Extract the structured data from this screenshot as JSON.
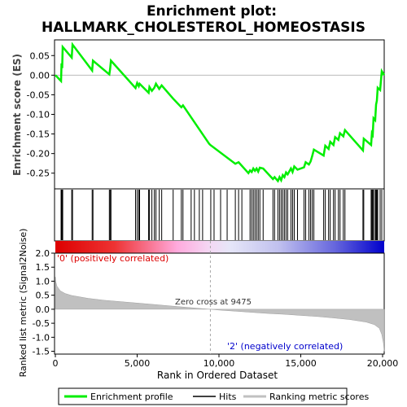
{
  "chart_data": {
    "type": "line",
    "title_line1": "Enrichment plot:",
    "title_line2": "HALLMARK_CHOLESTEROL_HOMEOSTASIS",
    "es_panel": {
      "ylabel": "Enrichment score (ES)",
      "ylim": [
        -0.29,
        0.09
      ],
      "yticks": [
        0.05,
        0.0,
        -0.05,
        -0.1,
        -0.15,
        -0.2,
        -0.25
      ],
      "ytick_labels": [
        "0.05",
        "0.00",
        "-0.05",
        "-0.10",
        "-0.15",
        "-0.20",
        "-0.25"
      ],
      "line_color": "#00ee00",
      "points": [
        [
          0,
          0.0
        ],
        [
          350,
          -0.015
        ],
        [
          380,
          0.03
        ],
        [
          420,
          0.018
        ],
        [
          450,
          0.072
        ],
        [
          1000,
          0.045
        ],
        [
          1050,
          0.078
        ],
        [
          2250,
          0.012
        ],
        [
          2300,
          0.037
        ],
        [
          3300,
          0.002
        ],
        [
          3350,
          0.016
        ],
        [
          3400,
          0.037
        ],
        [
          4900,
          -0.033
        ],
        [
          5000,
          -0.02
        ],
        [
          5100,
          -0.028
        ],
        [
          5150,
          -0.022
        ],
        [
          5700,
          -0.045
        ],
        [
          5750,
          -0.03
        ],
        [
          5900,
          -0.04
        ],
        [
          6050,
          -0.032
        ],
        [
          6150,
          -0.022
        ],
        [
          6350,
          -0.035
        ],
        [
          6500,
          -0.026
        ],
        [
          7200,
          -0.06
        ],
        [
          7700,
          -0.082
        ],
        [
          7800,
          -0.077
        ],
        [
          9400,
          -0.175
        ],
        [
          9475,
          -0.178
        ],
        [
          11000,
          -0.226
        ],
        [
          11200,
          -0.222
        ],
        [
          11800,
          -0.25
        ],
        [
          11900,
          -0.243
        ],
        [
          12000,
          -0.247
        ],
        [
          12100,
          -0.238
        ],
        [
          12200,
          -0.244
        ],
        [
          12300,
          -0.238
        ],
        [
          12400,
          -0.246
        ],
        [
          12500,
          -0.236
        ],
        [
          12700,
          -0.238
        ],
        [
          13300,
          -0.265
        ],
        [
          13400,
          -0.26
        ],
        [
          13600,
          -0.27
        ],
        [
          13700,
          -0.26
        ],
        [
          13800,
          -0.268
        ],
        [
          13900,
          -0.255
        ],
        [
          14000,
          -0.26
        ],
        [
          14100,
          -0.248
        ],
        [
          14200,
          -0.253
        ],
        [
          14400,
          -0.238
        ],
        [
          14500,
          -0.247
        ],
        [
          14600,
          -0.233
        ],
        [
          14800,
          -0.241
        ],
        [
          15200,
          -0.235
        ],
        [
          15300,
          -0.222
        ],
        [
          15500,
          -0.228
        ],
        [
          15600,
          -0.22
        ],
        [
          15700,
          -0.206
        ],
        [
          15800,
          -0.19
        ],
        [
          16400,
          -0.205
        ],
        [
          16500,
          -0.18
        ],
        [
          16700,
          -0.188
        ],
        [
          16800,
          -0.17
        ],
        [
          17000,
          -0.178
        ],
        [
          17100,
          -0.158
        ],
        [
          17300,
          -0.165
        ],
        [
          17400,
          -0.148
        ],
        [
          17600,
          -0.156
        ],
        [
          17700,
          -0.14
        ],
        [
          18800,
          -0.192
        ],
        [
          18850,
          -0.162
        ],
        [
          19300,
          -0.178
        ],
        [
          19350,
          -0.148
        ],
        [
          19400,
          -0.152
        ],
        [
          19450,
          -0.11
        ],
        [
          19550,
          -0.115
        ],
        [
          19600,
          -0.075
        ],
        [
          19650,
          -0.065
        ],
        [
          19700,
          -0.032
        ],
        [
          19850,
          -0.038
        ],
        [
          19950,
          0.01
        ],
        [
          20100,
          0.0
        ]
      ]
    },
    "hits_panel": {
      "hit_positions": [
        350,
        380,
        420,
        450,
        1000,
        1050,
        2250,
        2300,
        3300,
        3350,
        3400,
        4900,
        5000,
        5100,
        5150,
        5700,
        5750,
        5900,
        6050,
        6150,
        6350,
        6500,
        7200,
        7700,
        7800,
        8300,
        8500,
        8800,
        9000,
        9500,
        9700,
        10100,
        10500,
        11000,
        11200,
        11400,
        11900,
        12000,
        12100,
        12200,
        12300,
        12400,
        12500,
        12700,
        13300,
        13400,
        13600,
        13700,
        13800,
        13900,
        14000,
        14100,
        14200,
        14400,
        14500,
        14600,
        14800,
        15200,
        15300,
        15500,
        15600,
        15700,
        15800,
        16400,
        16500,
        16700,
        16800,
        17000,
        17100,
        17300,
        17400,
        17600,
        17700,
        18800,
        18850,
        19300,
        19350,
        19400,
        19450,
        19550,
        19600,
        19650,
        19700,
        19850,
        19950
      ]
    },
    "ranking_panel": {
      "ylabel": "Ranked list metric (Signal2Noise)",
      "xlabel": "Rank in Ordered Dataset",
      "ylim": [
        -1.6,
        2.0
      ],
      "yticks": [
        2.0,
        1.5,
        1.0,
        0.5,
        0.0,
        -0.5,
        -1.0,
        -1.5
      ],
      "ytick_labels": [
        "2.0",
        "1.5",
        "1.0",
        "0.5",
        "0.0",
        "-0.5",
        "-1.0",
        "-1.5"
      ],
      "xlim": [
        0,
        20100
      ],
      "xticks": [
        0,
        5000,
        10000,
        15000,
        20000
      ],
      "xtick_labels": [
        "0",
        "5,000",
        "10,000",
        "15,000",
        "20,000"
      ],
      "zero_cross": 9475,
      "zero_cross_label": "Zero cross at 9475",
      "pos_label": "'0' (positively correlated)",
      "neg_label": "'2' (negatively correlated)",
      "metric_points": [
        [
          0,
          1.15
        ],
        [
          30,
          0.98
        ],
        [
          100,
          0.82
        ],
        [
          300,
          0.66
        ],
        [
          600,
          0.56
        ],
        [
          1000,
          0.49
        ],
        [
          2000,
          0.39
        ],
        [
          3000,
          0.32
        ],
        [
          4000,
          0.27
        ],
        [
          5000,
          0.22
        ],
        [
          6000,
          0.17
        ],
        [
          7000,
          0.12
        ],
        [
          8000,
          0.07
        ],
        [
          9000,
          0.02
        ],
        [
          9475,
          0.0
        ],
        [
          10000,
          -0.03
        ],
        [
          11000,
          -0.07
        ],
        [
          12000,
          -0.11
        ],
        [
          13000,
          -0.15
        ],
        [
          14000,
          -0.18
        ],
        [
          15000,
          -0.22
        ],
        [
          16000,
          -0.26
        ],
        [
          17000,
          -0.31
        ],
        [
          18000,
          -0.37
        ],
        [
          19000,
          -0.46
        ],
        [
          19500,
          -0.55
        ],
        [
          19800,
          -0.68
        ],
        [
          19950,
          -0.9
        ],
        [
          20050,
          -1.2
        ],
        [
          20100,
          -1.5
        ]
      ]
    },
    "legend": {
      "items": [
        {
          "label": "Enrichment profile",
          "color": "#00ee00"
        },
        {
          "label": "Hits",
          "color": "#000000"
        },
        {
          "label": "Ranking metric scores",
          "color": "#c0c0c0"
        }
      ]
    }
  }
}
